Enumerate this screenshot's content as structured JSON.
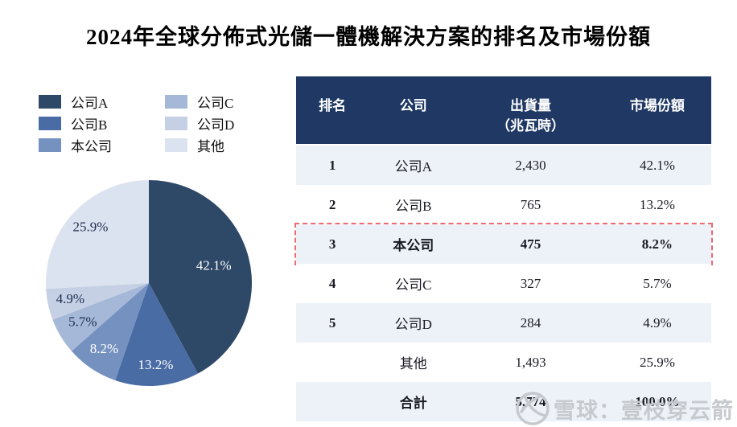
{
  "title": "2024年全球分佈式光儲一體機解決方案的排名及市場份額",
  "legend": {
    "items": [
      {
        "label": "公司A",
        "color": "#2E4867"
      },
      {
        "label": "公司B",
        "color": "#4A6CA5"
      },
      {
        "label": "本公司",
        "color": "#7591BF"
      },
      {
        "label": "公司C",
        "color": "#A5B8D7"
      },
      {
        "label": "公司D",
        "color": "#C5D0E5"
      },
      {
        "label": "其他",
        "color": "#DCE3F0"
      }
    ]
  },
  "chart_data": {
    "type": "pie",
    "title": "2024年全球分佈式光儲一體機解決方案的排名及市場份額",
    "labels": [
      "公司A",
      "公司B",
      "本公司",
      "公司C",
      "公司D",
      "其他"
    ],
    "values": [
      42.1,
      13.2,
      8.2,
      5.7,
      4.9,
      25.9
    ],
    "unit": "%",
    "display_labels": [
      "42.1%",
      "13.2%",
      "8.2%",
      "5.7%",
      "4.9%",
      "25.9%"
    ],
    "colors": [
      "#2E4867",
      "#4A6CA5",
      "#7591BF",
      "#A5B8D7",
      "#C5D0E5",
      "#DCE3F0"
    ],
    "label_colors": [
      "#FFFFFF",
      "#FFFFFF",
      "#FFFFFF",
      "#203050",
      "#203050",
      "#203050"
    ],
    "label_radius": [
      0.65,
      0.81,
      0.78,
      0.75,
      0.78,
      0.78
    ],
    "start_angle": "top",
    "direction": "clockwise",
    "legend_position": "top-left"
  },
  "table": {
    "columns": [
      {
        "label": "排名",
        "sub": ""
      },
      {
        "label": "公司",
        "sub": ""
      },
      {
        "label": "出貨量",
        "sub": "（兆瓦時）"
      },
      {
        "label": "市場份額",
        "sub": ""
      }
    ],
    "rows": [
      {
        "rank": "1",
        "company": "公司A",
        "shipments": "2,430",
        "share": "42.1%",
        "highlight": false,
        "bold": false
      },
      {
        "rank": "2",
        "company": "公司B",
        "shipments": "765",
        "share": "13.2%",
        "highlight": false,
        "bold": false
      },
      {
        "rank": "3",
        "company": "本公司",
        "shipments": "475",
        "share": "8.2%",
        "highlight": true,
        "bold": true
      },
      {
        "rank": "4",
        "company": "公司C",
        "shipments": "327",
        "share": "5.7%",
        "highlight": false,
        "bold": false
      },
      {
        "rank": "5",
        "company": "公司D",
        "shipments": "284",
        "share": "4.9%",
        "highlight": false,
        "bold": false
      },
      {
        "rank": "",
        "company": "其他",
        "shipments": "1,493",
        "share": "25.9%",
        "highlight": false,
        "bold": false
      },
      {
        "rank": "",
        "company": "合計",
        "shipments": "5,774",
        "share": "100.0%",
        "highlight": false,
        "bold": true
      }
    ],
    "colors": {
      "header_bg": "#1F3864",
      "header_text": "#FFFFFF",
      "row_alt_bg": "#EDF2F9",
      "row_bg": "#FFFFFF",
      "highlight_border": "#EC6B70",
      "body_text": "#1A1A24"
    }
  },
  "watermark": {
    "text": "雪球：壹枝穿云箭",
    "color": "#C6C9CD",
    "icon": "xueqiu-logo"
  }
}
